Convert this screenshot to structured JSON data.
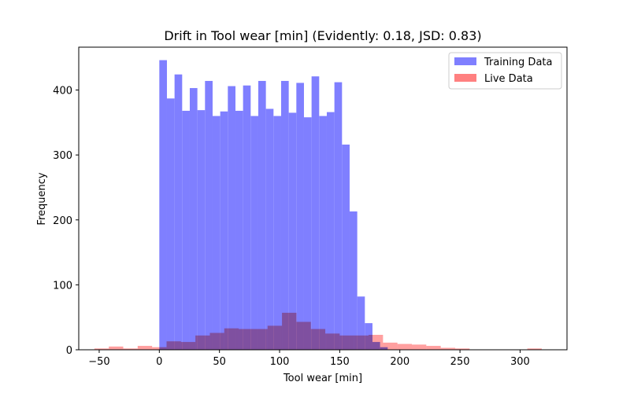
{
  "chart_data": {
    "type": "bar",
    "subtype": "overlaid-histogram",
    "title": "Drift in Tool wear [min] (Evidently: 0.18, JSD: 0.83)",
    "xlabel": "Tool wear [min]",
    "ylabel": "Frequency",
    "xlim": [
      -67,
      339
    ],
    "ylim": [
      0,
      466
    ],
    "xticks": [
      -50,
      0,
      50,
      100,
      150,
      200,
      250,
      300
    ],
    "yticks": [
      0,
      100,
      200,
      300,
      400
    ],
    "legend_position": "top-right",
    "series": [
      {
        "name": "Training Data",
        "color": "#7f7fff",
        "bin_width": 6.33,
        "bin_start": 0,
        "values": [
          446,
          387,
          424,
          368,
          403,
          369,
          414,
          360,
          367,
          406,
          368,
          407,
          360,
          414,
          371,
          360,
          414,
          365,
          411,
          358,
          421,
          360,
          366,
          412,
          316,
          213,
          82,
          41,
          12,
          4
        ]
      },
      {
        "name": "Live Data",
        "color": "#ff8080",
        "bin_width": 12.0,
        "bin_start": -54,
        "values": [
          2,
          5,
          2,
          6,
          4,
          13,
          12,
          22,
          26,
          33,
          32,
          32,
          37,
          57,
          43,
          32,
          25,
          22,
          22,
          23,
          11,
          9,
          8,
          6,
          3,
          2,
          0,
          0,
          0,
          0,
          2
        ]
      }
    ]
  }
}
